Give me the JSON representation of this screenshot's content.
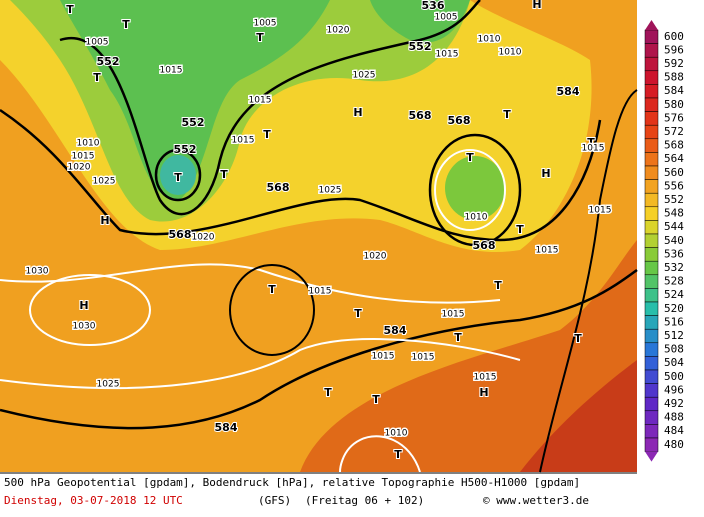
{
  "scale": {
    "labels": [
      "600",
      "596",
      "592",
      "588",
      "584",
      "580",
      "576",
      "572",
      "568",
      "564",
      "560",
      "556",
      "552",
      "548",
      "544",
      "540",
      "536",
      "532",
      "528",
      "524",
      "520",
      "516",
      "512",
      "508",
      "504",
      "500",
      "496",
      "492",
      "488",
      "484",
      "480"
    ]
  },
  "map": {
    "labels": [
      "552",
      "552",
      "552",
      "T",
      "568",
      "1020",
      "568",
      "T",
      "T",
      "1015",
      "1015",
      "1015",
      "T",
      "1005",
      "T",
      "T",
      "1005",
      "T",
      "1010",
      "1015",
      "1020",
      "1025",
      "H",
      "1030",
      "H",
      "1030",
      "1025",
      "1020",
      "1025",
      "552",
      "1015",
      "536",
      "1005",
      "H",
      "568",
      "568",
      "T",
      "1010",
      "1010",
      "584",
      "T",
      "1015",
      "T",
      "1010",
      "H",
      "1015",
      "T",
      "568",
      "1015",
      "1025",
      "1020",
      "T",
      "1015",
      "T",
      "584",
      "1015",
      "T",
      "T",
      "T",
      "1015",
      "1015",
      "1015",
      "H",
      "T",
      "T",
      "584",
      "1010",
      "T",
      "H"
    ]
  },
  "footer": {
    "line1": "500 hPa Geopotential [gpdam], Bodendruck [hPa], relative Topographie H500-H1000 [gpdam]",
    "date": "Dienstag, 03-07-2018  12 UTC",
    "model": "(GFS)",
    "run": "(Freitag 06 + 102)",
    "credit": "© www.wetter3.de"
  }
}
